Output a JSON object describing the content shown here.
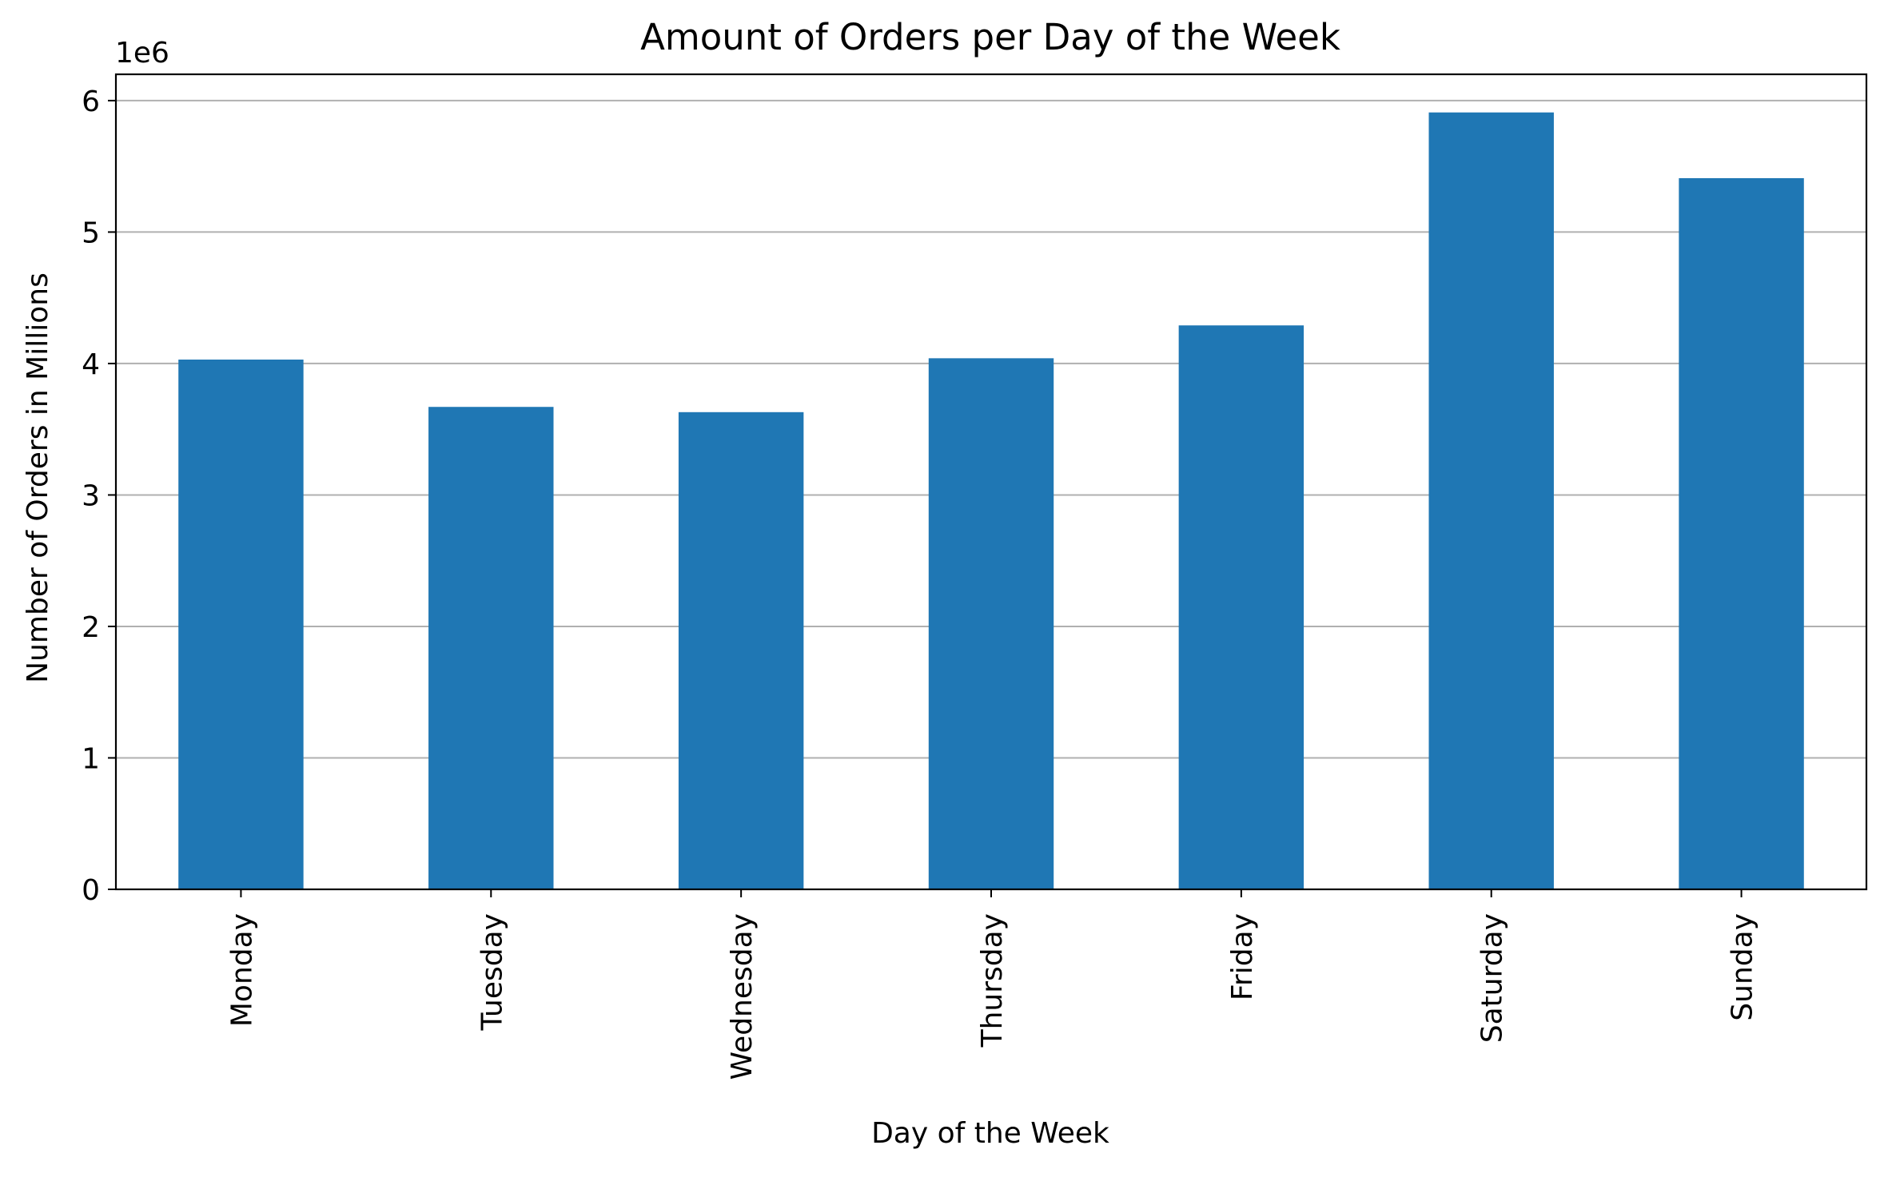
{
  "chart_data": {
    "type": "bar",
    "title": "Amount of Orders per Day of the Week",
    "xlabel": "Day of the Week",
    "ylabel": "Number of Orders in Millions",
    "offset_label": "1e6",
    "categories": [
      "Monday",
      "Tuesday",
      "Wednesday",
      "Thursday",
      "Friday",
      "Saturday",
      "Sunday"
    ],
    "values": [
      4030000,
      3670000,
      3630000,
      4040000,
      4290000,
      5910000,
      5410000
    ],
    "ylim": [
      0,
      6200000
    ],
    "yticks": [
      0,
      1000000,
      2000000,
      3000000,
      4000000,
      5000000,
      6000000
    ],
    "ytick_labels": [
      "0",
      "1",
      "2",
      "3",
      "4",
      "5",
      "6"
    ],
    "grid": "y",
    "bar_color": "#1f77b4",
    "grid_color": "#b0b0b0"
  }
}
